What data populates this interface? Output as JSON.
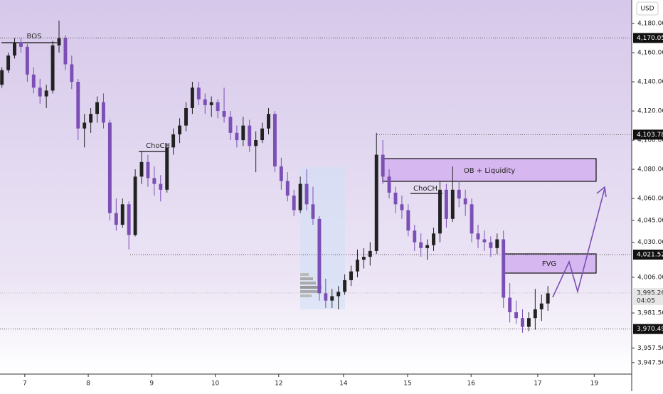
{
  "chart_data": {
    "type": "candlestick",
    "currency": "USD",
    "up_color": "#222222",
    "down_color": "#7b4fb5",
    "ylim": [
      3939.6,
      4196.1
    ],
    "yticks": [
      {
        "value": 4180,
        "label": "4,180.000"
      },
      {
        "value": 4160,
        "label": "4,160.000"
      },
      {
        "value": 4140,
        "label": "4,140.000"
      },
      {
        "value": 4120,
        "label": "4,120.000"
      },
      {
        "value": 4100,
        "label": "4,100.000"
      },
      {
        "value": 4080,
        "label": "4,080.000"
      },
      {
        "value": 4060,
        "label": "4,060.000"
      },
      {
        "value": 4045,
        "label": "4,045.000"
      },
      {
        "value": 4030,
        "label": "4,030.000"
      },
      {
        "value": 4006,
        "label": "4,006.000"
      },
      {
        "value": 3981.5,
        "label": "3,981.500"
      },
      {
        "value": 3957.5,
        "label": "3,957.500"
      },
      {
        "value": 3947.5,
        "label": "3,947.500"
      }
    ],
    "xlim": [
      -0.3,
      99.2
    ],
    "xticks": [
      {
        "value": 3.6,
        "label": "7"
      },
      {
        "value": 13.6,
        "label": "8"
      },
      {
        "value": 23.6,
        "label": "9"
      },
      {
        "value": 33.6,
        "label": "10"
      },
      {
        "value": 43.6,
        "label": "12"
      },
      {
        "value": 53.8,
        "label": "14"
      },
      {
        "value": 63.9,
        "label": "15"
      },
      {
        "value": 73.9,
        "label": "16"
      },
      {
        "value": 84.4,
        "label": "17"
      },
      {
        "value": 93.3,
        "label": "19"
      }
    ],
    "price_labels": [
      {
        "value": 4170.056,
        "label": "4,170.056"
      },
      {
        "value": 4103.78,
        "label": "4,103.780"
      },
      {
        "value": 4021.52,
        "label": "4,021.520"
      },
      {
        "value": 3995.26,
        "label": "3,995.260",
        "countdown": "04:05"
      },
      {
        "value": 3970.49,
        "label": "3,970.490"
      }
    ],
    "annotations": [
      "BOS",
      "ChoCH",
      "ChoCH",
      "OB + Liquidity",
      "FVG"
    ],
    "ohlc": [
      [
        4138,
        4150,
        4136,
        4148
      ],
      [
        4148,
        4160,
        4146,
        4158
      ],
      [
        4158,
        4170,
        4156,
        4167
      ],
      [
        4167,
        4170,
        4160,
        4164
      ],
      [
        4164,
        4166,
        4140,
        4145
      ],
      [
        4145,
        4150,
        4132,
        4136
      ],
      [
        4136,
        4142,
        4125,
        4130
      ],
      [
        4130,
        4138,
        4122,
        4134
      ],
      [
        4134,
        4168,
        4132,
        4165
      ],
      [
        4165,
        4182,
        4160,
        4170
      ],
      [
        4170,
        4172,
        4148,
        4152
      ],
      [
        4152,
        4158,
        4135,
        4140
      ],
      [
        4140,
        4142,
        4100,
        4108
      ],
      [
        4108,
        4118,
        4095,
        4112
      ],
      [
        4112,
        4122,
        4105,
        4118
      ],
      [
        4118,
        4130,
        4112,
        4126
      ],
      [
        4126,
        4132,
        4108,
        4112
      ],
      [
        4112,
        4114,
        4045,
        4050
      ],
      [
        4050,
        4060,
        4038,
        4042
      ],
      [
        4042,
        4060,
        4040,
        4056
      ],
      [
        4056,
        4058,
        4025,
        4035
      ],
      [
        4035,
        4080,
        4034,
        4075
      ],
      [
        4075,
        4092,
        4070,
        4085
      ],
      [
        4085,
        4090,
        4068,
        4074
      ],
      [
        4074,
        4082,
        4062,
        4070
      ],
      [
        4070,
        4076,
        4058,
        4066
      ],
      [
        4066,
        4098,
        4064,
        4095
      ],
      [
        4095,
        4108,
        4090,
        4104
      ],
      [
        4104,
        4115,
        4098,
        4110
      ],
      [
        4110,
        4126,
        4106,
        4122
      ],
      [
        4122,
        4140,
        4118,
        4136
      ],
      [
        4136,
        4140,
        4124,
        4128
      ],
      [
        4128,
        4132,
        4118,
        4124
      ],
      [
        4124,
        4130,
        4116,
        4126
      ],
      [
        4126,
        4128,
        4115,
        4120
      ],
      [
        4120,
        4136,
        4112,
        4116
      ],
      [
        4116,
        4120,
        4100,
        4105
      ],
      [
        4105,
        4110,
        4095,
        4100
      ],
      [
        4100,
        4116,
        4096,
        4110
      ],
      [
        4110,
        4114,
        4092,
        4096
      ],
      [
        4096,
        4106,
        4078,
        4100
      ],
      [
        4100,
        4112,
        4098,
        4108
      ],
      [
        4108,
        4122,
        4104,
        4118
      ],
      [
        4118,
        4120,
        4078,
        4082
      ],
      [
        4082,
        4088,
        4066,
        4072
      ],
      [
        4072,
        4078,
        4058,
        4062
      ],
      [
        4062,
        4066,
        4048,
        4052
      ],
      [
        4052,
        4075,
        4050,
        4070
      ],
      [
        4070,
        4080,
        4052,
        4056
      ],
      [
        4056,
        4068,
        4042,
        4046
      ],
      [
        4046,
        4048,
        3990,
        3995
      ],
      [
        3995,
        4005,
        3985,
        3990
      ],
      [
        3990,
        3998,
        3985,
        3993
      ],
      [
        3993,
        4000,
        3984,
        3996
      ],
      [
        3996,
        4008,
        3994,
        4004
      ],
      [
        4004,
        4014,
        4000,
        4010
      ],
      [
        4010,
        4025,
        4006,
        4018
      ],
      [
        4018,
        4026,
        4012,
        4020
      ],
      [
        4020,
        4030,
        4014,
        4024
      ],
      [
        4024,
        4105,
        4022,
        4090
      ],
      [
        4090,
        4100,
        4070,
        4075
      ],
      [
        4075,
        4080,
        4060,
        4064
      ],
      [
        4064,
        4068,
        4050,
        4056
      ],
      [
        4056,
        4062,
        4046,
        4052
      ],
      [
        4052,
        4056,
        4034,
        4038
      ],
      [
        4038,
        4042,
        4024,
        4030
      ],
      [
        4030,
        4036,
        4020,
        4026
      ],
      [
        4026,
        4032,
        4018,
        4028
      ],
      [
        4028,
        4040,
        4024,
        4036
      ],
      [
        4036,
        4072,
        4030,
        4066
      ],
      [
        4066,
        4070,
        4040,
        4046
      ],
      [
        4046,
        4082,
        4044,
        4066
      ],
      [
        4066,
        4072,
        4054,
        4060
      ],
      [
        4060,
        4066,
        4048,
        4056
      ],
      [
        4056,
        4060,
        4030,
        4036
      ],
      [
        4036,
        4042,
        4026,
        4032
      ],
      [
        4032,
        4038,
        4024,
        4030
      ],
      [
        4030,
        4034,
        4020,
        4026
      ],
      [
        4026,
        4036,
        4022,
        4032
      ],
      [
        4032,
        4038,
        3985,
        3992
      ],
      [
        3992,
        4002,
        3975,
        3982
      ],
      [
        3982,
        3990,
        3974,
        3978
      ],
      [
        3978,
        3984,
        3968,
        3972
      ],
      [
        3972,
        3982,
        3969,
        3978
      ],
      [
        3978,
        3998,
        3970,
        3984
      ],
      [
        3984,
        3994,
        3976,
        3988
      ],
      [
        3988,
        4000,
        3983,
        3995
      ]
    ]
  }
}
